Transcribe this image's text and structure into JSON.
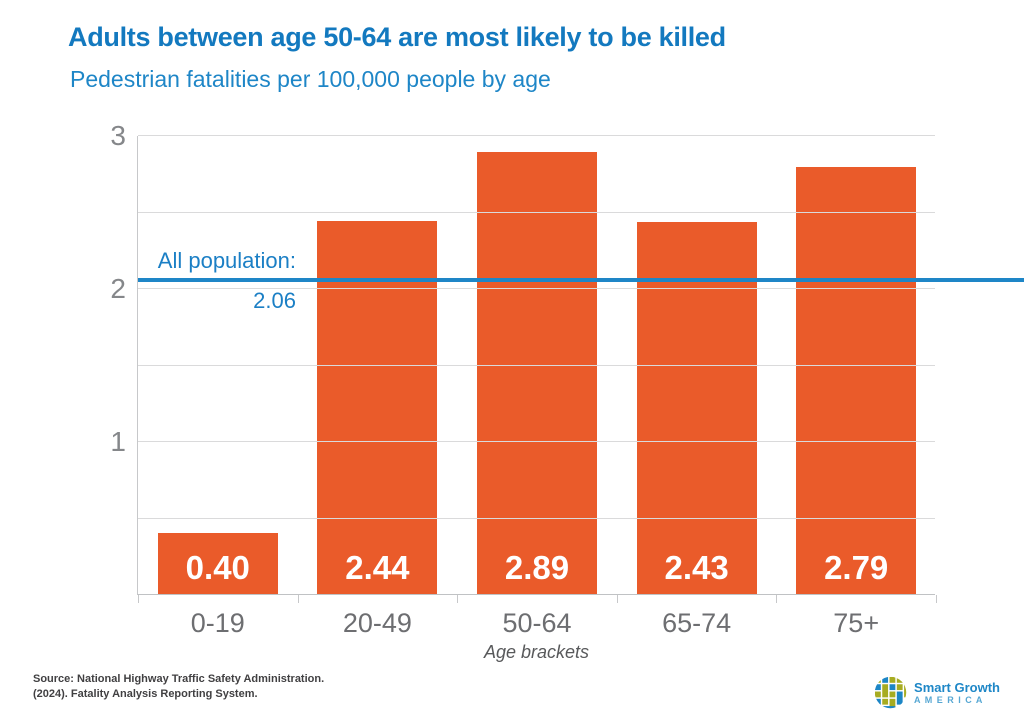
{
  "header": {
    "title": "Adults between age 50-64 are most likely to be killed",
    "subtitle": "Pedestrian fatalities per 100,000 people by age"
  },
  "chart_data": {
    "type": "bar",
    "title": "Adults between age 50-64 are most likely to be killed",
    "subtitle": "Pedestrian fatalities per 100,000 people by age",
    "categories": [
      "0-19",
      "20-49",
      "50-64",
      "65-74",
      "75+"
    ],
    "values": [
      0.4,
      2.44,
      2.89,
      2.43,
      2.79
    ],
    "value_labels": [
      "0.40",
      "2.44",
      "2.89",
      "2.43",
      "2.79"
    ],
    "xlabel": "Age brackets",
    "ylabel": "",
    "ylim": [
      0,
      3
    ],
    "yticks": [
      "1",
      "2",
      "3"
    ],
    "ytick_values": [
      1,
      2,
      3
    ],
    "gridline_step": 0.5,
    "grid": true,
    "legend": "none",
    "reference_line": {
      "value": 2.06,
      "label": "All population:",
      "value_label": "2.06"
    },
    "bar_color": "#EA5B2A",
    "reference_line_color": "#1E86C7"
  },
  "footer": {
    "source_line1": "Source: National Highway Traffic Safety Administration.",
    "source_line2": "(2024). Fatality Analysis Reporting System.",
    "logo": {
      "name": "Smart Growth America",
      "line1": "Smart Growth",
      "line2": "A M E R I C A"
    }
  },
  "colors": {
    "title_blue": "#1379BF",
    "subtitle_blue": "#1E86C7",
    "bar_orange": "#EA5B2A",
    "reference_blue": "#1E86C7",
    "logo_green": "#A7AC21",
    "logo_blue": "#1C86C6",
    "axis_gray": "#85878A"
  }
}
